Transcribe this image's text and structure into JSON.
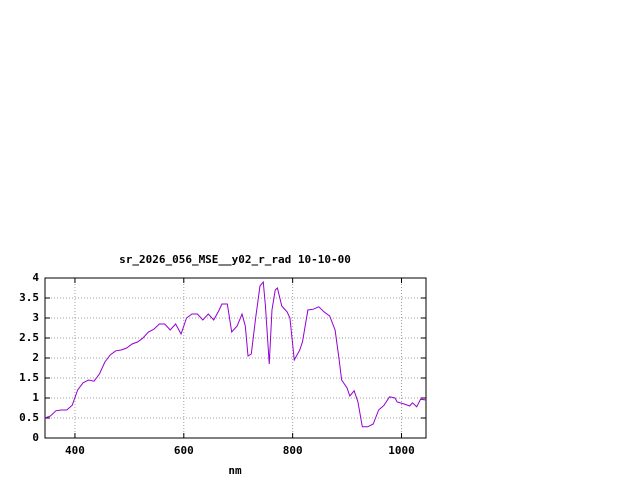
{
  "chart_data": {
    "type": "line",
    "title": "sr_2026_056_MSE__y02_r_rad 10-10-00",
    "x_label": "nm",
    "xlim": [
      345,
      1045
    ],
    "ylim": [
      0,
      4
    ],
    "xticks": [
      400,
      600,
      800,
      1000
    ],
    "yticks": [
      0,
      0.5,
      1,
      1.5,
      2,
      2.5,
      3,
      3.5,
      4
    ],
    "grid": true,
    "series": [
      {
        "color": "#9400d3",
        "x": [
          345,
          355,
          365,
          375,
          385,
          395,
          405,
          415,
          425,
          435,
          445,
          455,
          465,
          475,
          485,
          495,
          505,
          515,
          525,
          535,
          545,
          555,
          565,
          575,
          585,
          595,
          605,
          615,
          625,
          635,
          645,
          655,
          665,
          670,
          680,
          688,
          698,
          707,
          713,
          718,
          724,
          732,
          740,
          746,
          750,
          757,
          762,
          768,
          772,
          780,
          790,
          795,
          803,
          813,
          818,
          828,
          838,
          848,
          858,
          868,
          878,
          885,
          890,
          900,
          905,
          913,
          920,
          928,
          938,
          948,
          958,
          968,
          978,
          988,
          992,
          1005,
          1015,
          1020,
          1028,
          1035,
          1045
        ],
        "values": [
          0.5,
          0.55,
          0.68,
          0.7,
          0.7,
          0.82,
          1.2,
          1.38,
          1.45,
          1.42,
          1.6,
          1.9,
          2.08,
          2.18,
          2.2,
          2.25,
          2.35,
          2.4,
          2.5,
          2.65,
          2.72,
          2.85,
          2.85,
          2.7,
          2.85,
          2.6,
          3.0,
          3.1,
          3.1,
          2.95,
          3.1,
          2.95,
          3.2,
          3.35,
          3.35,
          2.65,
          2.8,
          3.1,
          2.8,
          2.05,
          2.1,
          3.0,
          3.8,
          3.9,
          3.3,
          1.85,
          3.2,
          3.7,
          3.75,
          3.3,
          3.15,
          3.0,
          1.95,
          2.2,
          2.4,
          3.2,
          3.22,
          3.28,
          3.15,
          3.05,
          2.7,
          2.0,
          1.45,
          1.25,
          1.05,
          1.18,
          0.9,
          0.28,
          0.28,
          0.35,
          0.7,
          0.82,
          1.03,
          1.0,
          0.9,
          0.85,
          0.8,
          0.88,
          0.78,
          0.97,
          0.95
        ]
      }
    ]
  }
}
